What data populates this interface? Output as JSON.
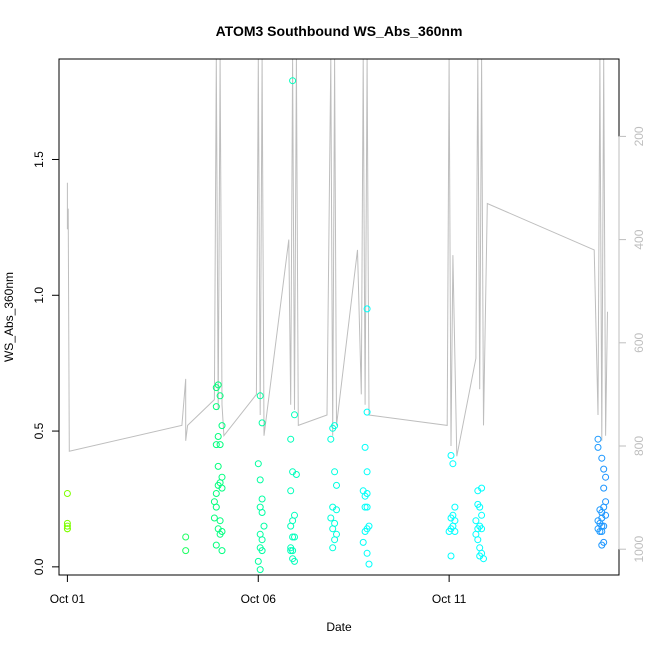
{
  "chart_data": {
    "type": "scatter",
    "title": "ATOM3 Southbound WS_Abs_360nm",
    "xlabel": "Date",
    "ylabel": "WS_Abs_360nm",
    "x_tick_labels": [
      "Oct 01",
      "Oct 06",
      "Oct 11"
    ],
    "x_tick_days": [
      1,
      6,
      11
    ],
    "xlim_days": [
      0.78,
      15.45
    ],
    "ylim": [
      -0.03,
      1.87
    ],
    "y_ticks": [
      0.0,
      0.5,
      1.0,
      1.5
    ],
    "y_tick_labels": [
      "0.0",
      "0.5",
      "1.0",
      "1.5"
    ],
    "right_axis": {
      "label_color": "#bebebe",
      "ticks": [
        200,
        400,
        600,
        800,
        1000
      ],
      "tick_labels": [
        "200",
        "400",
        "600",
        "800",
        "1000"
      ],
      "lim_top": 50,
      "lim_bottom": 1050,
      "series_color": "#bebebe"
    },
    "grid": false,
    "point_style": "open-circle",
    "color_note": "point color varies by date (green to cyan to blue)",
    "colors": {
      "early": "#7fff00",
      "mid": "#00ff7f",
      "late": "#00ffff",
      "end": "#1e90ff",
      "line": "#bebebe"
    },
    "points": [
      [
        1.0,
        0.27
      ],
      [
        1.0,
        0.16
      ],
      [
        1.0,
        0.15
      ],
      [
        1.0,
        0.14
      ],
      [
        1.0,
        0.14
      ],
      [
        4.1,
        0.11
      ],
      [
        4.1,
        0.06
      ],
      [
        4.9,
        0.66
      ],
      [
        4.9,
        0.59
      ],
      [
        4.95,
        0.67
      ],
      [
        5.0,
        0.63
      ],
      [
        5.05,
        0.52
      ],
      [
        4.95,
        0.48
      ],
      [
        4.9,
        0.45
      ],
      [
        5.0,
        0.45
      ],
      [
        4.95,
        0.37
      ],
      [
        5.05,
        0.33
      ],
      [
        5.0,
        0.31
      ],
      [
        4.95,
        0.3
      ],
      [
        5.05,
        0.29
      ],
      [
        4.9,
        0.27
      ],
      [
        4.85,
        0.24
      ],
      [
        4.9,
        0.22
      ],
      [
        4.85,
        0.18
      ],
      [
        5.0,
        0.17
      ],
      [
        4.95,
        0.14
      ],
      [
        5.05,
        0.13
      ],
      [
        5.0,
        0.12
      ],
      [
        4.9,
        0.08
      ],
      [
        5.05,
        0.06
      ],
      [
        6.0,
        0.38
      ],
      [
        6.05,
        0.63
      ],
      [
        6.1,
        0.53
      ],
      [
        6.05,
        0.32
      ],
      [
        6.1,
        0.25
      ],
      [
        6.05,
        0.22
      ],
      [
        6.1,
        0.2
      ],
      [
        6.15,
        0.15
      ],
      [
        6.05,
        0.12
      ],
      [
        6.1,
        0.1
      ],
      [
        6.05,
        0.07
      ],
      [
        6.1,
        0.06
      ],
      [
        6.0,
        0.02
      ],
      [
        6.05,
        -0.01
      ],
      [
        6.9,
        1.79
      ],
      [
        6.95,
        0.56
      ],
      [
        6.85,
        0.47
      ],
      [
        6.9,
        0.35
      ],
      [
        7.0,
        0.34
      ],
      [
        6.85,
        0.28
      ],
      [
        6.95,
        0.19
      ],
      [
        6.9,
        0.17
      ],
      [
        6.85,
        0.15
      ],
      [
        6.95,
        0.11
      ],
      [
        6.9,
        0.11
      ],
      [
        6.85,
        0.07
      ],
      [
        6.9,
        0.06
      ],
      [
        6.85,
        0.06
      ],
      [
        6.9,
        0.03
      ],
      [
        6.95,
        0.02
      ],
      [
        7.95,
        0.51
      ],
      [
        8.0,
        0.52
      ],
      [
        7.9,
        0.47
      ],
      [
        8.0,
        0.35
      ],
      [
        8.05,
        0.3
      ],
      [
        7.95,
        0.22
      ],
      [
        8.05,
        0.21
      ],
      [
        7.9,
        0.18
      ],
      [
        8.0,
        0.16
      ],
      [
        7.95,
        0.14
      ],
      [
        8.05,
        0.12
      ],
      [
        8.0,
        0.1
      ],
      [
        7.95,
        0.07
      ],
      [
        8.85,
        0.95
      ],
      [
        8.85,
        0.57
      ],
      [
        8.8,
        0.44
      ],
      [
        8.85,
        0.35
      ],
      [
        8.75,
        0.28
      ],
      [
        8.85,
        0.27
      ],
      [
        8.8,
        0.26
      ],
      [
        8.85,
        0.22
      ],
      [
        8.8,
        0.22
      ],
      [
        8.9,
        0.15
      ],
      [
        8.85,
        0.14
      ],
      [
        8.8,
        0.13
      ],
      [
        8.75,
        0.09
      ],
      [
        8.85,
        0.05
      ],
      [
        8.9,
        0.01
      ],
      [
        11.05,
        0.41
      ],
      [
        11.1,
        0.38
      ],
      [
        11.15,
        0.22
      ],
      [
        11.1,
        0.19
      ],
      [
        11.05,
        0.18
      ],
      [
        11.15,
        0.17
      ],
      [
        11.1,
        0.15
      ],
      [
        11.05,
        0.14
      ],
      [
        11.0,
        0.13
      ],
      [
        11.15,
        0.13
      ],
      [
        11.05,
        0.04
      ],
      [
        11.75,
        0.28
      ],
      [
        11.85,
        0.29
      ],
      [
        11.75,
        0.23
      ],
      [
        11.8,
        0.22
      ],
      [
        11.85,
        0.19
      ],
      [
        11.7,
        0.17
      ],
      [
        11.8,
        0.15
      ],
      [
        11.75,
        0.14
      ],
      [
        11.85,
        0.14
      ],
      [
        11.7,
        0.12
      ],
      [
        11.75,
        0.1
      ],
      [
        11.8,
        0.07
      ],
      [
        11.85,
        0.05
      ],
      [
        11.8,
        0.04
      ],
      [
        11.9,
        0.03
      ],
      [
        14.9,
        0.47
      ],
      [
        14.9,
        0.44
      ],
      [
        15.0,
        0.4
      ],
      [
        15.05,
        0.36
      ],
      [
        15.1,
        0.33
      ],
      [
        15.05,
        0.29
      ],
      [
        15.1,
        0.24
      ],
      [
        15.05,
        0.22
      ],
      [
        14.95,
        0.21
      ],
      [
        15.0,
        0.2
      ],
      [
        15.1,
        0.19
      ],
      [
        15.0,
        0.18
      ],
      [
        14.9,
        0.17
      ],
      [
        14.95,
        0.16
      ],
      [
        15.0,
        0.15
      ],
      [
        15.05,
        0.15
      ],
      [
        14.9,
        0.14
      ],
      [
        14.95,
        0.13
      ],
      [
        15.0,
        0.13
      ],
      [
        15.05,
        0.09
      ],
      [
        15.0,
        0.08
      ]
    ],
    "line_series": [
      [
        1.0,
        290
      ],
      [
        1.0,
        380
      ],
      [
        1.02,
        340
      ],
      [
        1.05,
        810
      ],
      [
        4.0,
        760
      ],
      [
        4.1,
        670
      ],
      [
        4.1,
        790
      ],
      [
        4.15,
        760
      ],
      [
        4.85,
        710
      ],
      [
        4.9,
        50
      ],
      [
        4.95,
        730
      ],
      [
        5.0,
        50
      ],
      [
        5.05,
        720
      ],
      [
        5.1,
        780
      ],
      [
        5.95,
        700
      ],
      [
        6.0,
        50
      ],
      [
        6.05,
        740
      ],
      [
        6.1,
        50
      ],
      [
        6.15,
        780
      ],
      [
        6.8,
        400
      ],
      [
        6.85,
        720
      ],
      [
        6.9,
        50
      ],
      [
        6.95,
        730
      ],
      [
        7.0,
        50
      ],
      [
        7.05,
        760
      ],
      [
        7.8,
        740
      ],
      [
        7.9,
        50
      ],
      [
        7.95,
        780
      ],
      [
        8.0,
        50
      ],
      [
        8.05,
        760
      ],
      [
        8.6,
        420
      ],
      [
        8.7,
        700
      ],
      [
        8.75,
        50
      ],
      [
        8.8,
        720
      ],
      [
        8.85,
        50
      ],
      [
        8.9,
        740
      ],
      [
        10.95,
        760
      ],
      [
        11.0,
        50
      ],
      [
        11.05,
        800
      ],
      [
        11.1,
        430
      ],
      [
        11.2,
        820
      ],
      [
        11.7,
        630
      ],
      [
        11.75,
        50
      ],
      [
        11.8,
        690
      ],
      [
        11.85,
        50
      ],
      [
        11.9,
        760
      ],
      [
        12.0,
        330
      ],
      [
        14.8,
        420
      ],
      [
        14.9,
        740
      ],
      [
        14.95,
        50
      ],
      [
        15.0,
        790
      ],
      [
        15.05,
        50
      ],
      [
        15.1,
        780
      ],
      [
        15.15,
        540
      ]
    ]
  }
}
